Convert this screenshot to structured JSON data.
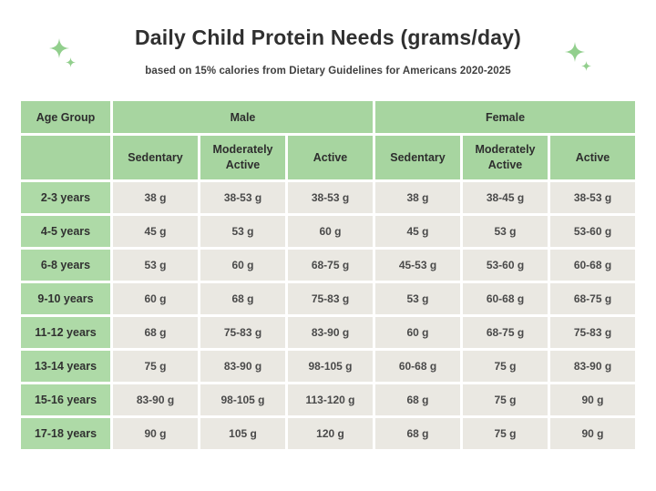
{
  "colors": {
    "header_cell_green": "#a7d5a0",
    "age_cell_green": "#aedaa7",
    "data_cell_gray": "#eae8e2",
    "sparkle_green": "#92cf8d",
    "title_text": "#303030",
    "cell_text": "#3d3d3d",
    "background": "#ffffff"
  },
  "chart_data": {
    "type": "table",
    "title": "Daily Child Protein Needs (grams/day)",
    "subtitle": "based on 15% calories from Dietary Guidelines for Americans 2020-2025",
    "corner_header": "Age Group",
    "column_groups": [
      {
        "label": "Male",
        "columns": [
          "Sedentary",
          "Moderately Active",
          "Active"
        ]
      },
      {
        "label": "Female",
        "columns": [
          "Sedentary",
          "Moderately Active",
          "Active"
        ]
      }
    ],
    "rows": [
      {
        "age_group": "2-3 years",
        "values": [
          "38 g",
          "38-53 g",
          "38-53 g",
          "38 g",
          "38-45 g",
          "38-53 g"
        ]
      },
      {
        "age_group": "4-5 years",
        "values": [
          "45 g",
          "53 g",
          "60 g",
          "45 g",
          "53 g",
          "53-60 g"
        ]
      },
      {
        "age_group": "6-8 years",
        "values": [
          "53 g",
          "60 g",
          "68-75 g",
          "45-53 g",
          "53-60 g",
          "60-68 g"
        ]
      },
      {
        "age_group": "9-10 years",
        "values": [
          "60 g",
          "68 g",
          "75-83 g",
          "53 g",
          "60-68 g",
          "68-75 g"
        ]
      },
      {
        "age_group": "11-12 years",
        "values": [
          "68 g",
          "75-83 g",
          "83-90 g",
          "60 g",
          "68-75 g",
          "75-83 g"
        ]
      },
      {
        "age_group": "13-14 years",
        "values": [
          "75 g",
          "83-90 g",
          "98-105 g",
          "60-68 g",
          "75 g",
          "83-90 g"
        ]
      },
      {
        "age_group": "15-16 years",
        "values": [
          "83-90 g",
          "98-105 g",
          "113-120 g",
          "68 g",
          "75 g",
          "90 g"
        ]
      },
      {
        "age_group": "17-18 years",
        "values": [
          "90 g",
          "105 g",
          "120 g",
          "68 g",
          "75 g",
          "90 g"
        ]
      }
    ]
  }
}
